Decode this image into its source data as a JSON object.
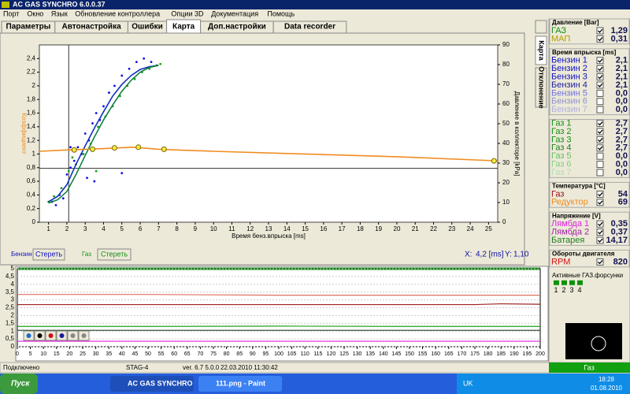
{
  "window": {
    "title": "AC GAS SYNCHRO  6.0.0.37"
  },
  "menu": [
    "Порт",
    "Окно",
    "Язык",
    "Обновление контроллера",
    "Опции 3D",
    "Документация",
    "Помощь"
  ],
  "tabs": [
    "Параметры",
    "Автонастройка",
    "Ошибки",
    "Карта",
    "Доп.настройки",
    "Data recorder"
  ],
  "side_tabs": [
    "Карта",
    "Отклонение"
  ],
  "chart_data": [
    {
      "type": "line",
      "xlabel": "Время бенз.впрыска [ms]",
      "ylabel": "Коэффициент",
      "y2label": "Давление в коллекторе [kPa]",
      "xlim": [
        0.5,
        25.5
      ],
      "xticks": [
        1,
        2,
        3,
        4,
        5,
        6,
        7,
        8,
        9,
        10,
        11,
        12,
        13,
        14,
        15,
        16,
        17,
        18,
        19,
        20,
        21,
        22,
        23,
        24,
        25
      ],
      "ylim": [
        0,
        2.6
      ],
      "yticks": [
        0,
        {
          "value": 0.2,
          "label": "0,2"
        },
        {
          "value": 0.4,
          "label": "0,4"
        },
        {
          "value": 0.6,
          "label": "0,6"
        },
        {
          "value": 0.8,
          "label": "0,8"
        },
        1,
        {
          "value": 1.2,
          "label": "1,2"
        },
        {
          "value": 1.4,
          "label": "1,4"
        },
        {
          "value": 1.6,
          "label": "1,6"
        },
        {
          "value": 1.8,
          "label": "1,8"
        },
        2,
        {
          "value": 2.2,
          "label": "2,2"
        },
        {
          "value": 2.4,
          "label": "2,4"
        }
      ],
      "y2lim": [
        0,
        90
      ],
      "y2ticks": [
        0,
        10,
        20,
        30,
        40,
        50,
        60,
        70,
        80,
        90
      ],
      "cursor": {
        "x": 2.1,
        "y": 0.79
      },
      "series": [
        {
          "kind": "points",
          "color": "#1010e0",
          "x": [
            1.2,
            1.4,
            1.6,
            1.8,
            2.0,
            2.2,
            2.4,
            2.6,
            2.8,
            3.0,
            3.2,
            3.4,
            3.6,
            3.8,
            4.0,
            4.3,
            4.6,
            5.0,
            5.4,
            5.8,
            6.2,
            6.6,
            3.5,
            3.1,
            2.2,
            5.0
          ],
          "values": [
            0.3,
            0.25,
            0.4,
            0.35,
            0.7,
            0.8,
            0.9,
            1.1,
            1.0,
            1.3,
            1.2,
            1.45,
            1.6,
            1.5,
            1.7,
            1.9,
            2.0,
            2.15,
            2.25,
            2.35,
            2.4,
            2.35,
            0.6,
            0.65,
            1.1,
            0.72
          ]
        },
        {
          "kind": "points",
          "color": "#10a010",
          "x": [
            1.0,
            1.3,
            1.7,
            2.1,
            2.5,
            2.9,
            3.3,
            3.7,
            4.1,
            4.5,
            4.9,
            5.3,
            5.7,
            6.1,
            6.5,
            6.9,
            7.1,
            2.3,
            3.6
          ],
          "values": [
            0.3,
            0.38,
            0.5,
            0.75,
            0.85,
            1.0,
            1.15,
            1.4,
            1.55,
            1.7,
            1.85,
            2.0,
            2.1,
            2.2,
            2.25,
            2.3,
            2.32,
            0.95,
            0.75
          ]
        },
        {
          "kind": "line",
          "color": "#1030c0",
          "x": [
            1,
            1.5,
            2,
            2.5,
            3,
            3.5,
            4,
            4.5,
            5,
            5.5,
            6,
            6.5,
            7
          ],
          "values": [
            0.3,
            0.38,
            0.55,
            0.85,
            1.12,
            1.38,
            1.62,
            1.85,
            2.02,
            2.15,
            2.24,
            2.28,
            2.3
          ]
        },
        {
          "kind": "line",
          "color": "#108040",
          "x": [
            1,
            1.5,
            2,
            2.5,
            3,
            3.5,
            4,
            4.5,
            5,
            5.5,
            6,
            6.5,
            7
          ],
          "values": [
            0.28,
            0.33,
            0.45,
            0.7,
            0.98,
            1.25,
            1.5,
            1.72,
            1.92,
            2.08,
            2.2,
            2.27,
            2.3
          ]
        },
        {
          "kind": "line",
          "color": "#f08c20",
          "x": [
            0.5,
            2,
            4,
            5.6,
            7,
            10,
            15,
            20,
            25.5
          ],
          "values": [
            1.04,
            1.06,
            1.08,
            1.1,
            1.07,
            1.04,
            1.0,
            0.96,
            0.9
          ]
        },
        {
          "kind": "markers",
          "color": "#f0f040",
          "x": [
            2.4,
            3.4,
            4.6,
            5.9,
            7.3,
            25.3
          ],
          "values": [
            1.06,
            1.07,
            1.09,
            1.1,
            1.07,
            0.9
          ]
        }
      ]
    },
    {
      "type": "line",
      "xlim": [
        0,
        200
      ],
      "xticks": [
        0,
        5,
        10,
        15,
        20,
        25,
        30,
        35,
        40,
        45,
        50,
        55,
        60,
        65,
        70,
        75,
        80,
        85,
        90,
        95,
        100,
        105,
        110,
        115,
        120,
        125,
        130,
        135,
        140,
        145,
        150,
        155,
        160,
        165,
        170,
        175,
        180,
        185,
        190,
        195,
        200
      ],
      "ylim": [
        0,
        5
      ],
      "yticks": [
        0,
        {
          "value": 0.5,
          "label": "0,5"
        },
        1,
        {
          "value": 1.5,
          "label": "1,5"
        },
        2,
        {
          "value": 2.5,
          "label": "2,5"
        },
        3,
        {
          "value": 3.5,
          "label": "3,5"
        },
        4,
        {
          "value": 4.5,
          "label": "4,5"
        },
        5
      ],
      "x": [
        0,
        50,
        100,
        150,
        175,
        185,
        200
      ],
      "series": [
        {
          "color": "#e07060",
          "values": [
            3.35,
            3.35,
            3.3,
            3.3,
            3.3,
            3.3,
            3.3
          ]
        },
        {
          "color": "#a02020",
          "values": [
            2.7,
            2.7,
            2.7,
            2.7,
            2.7,
            2.75,
            2.72
          ]
        },
        {
          "color": "#20a020",
          "values": [
            1.3,
            1.3,
            1.32,
            1.3,
            1.3,
            1.3,
            1.3
          ]
        },
        {
          "color": "#204020",
          "values": [
            1.05,
            1.05,
            1.05,
            1.05,
            1.05,
            1.05,
            1.05
          ]
        },
        {
          "color": "#e020e0",
          "values": [
            0.35,
            0.35,
            0.35,
            0.35,
            0.35,
            0.35,
            0.35
          ]
        }
      ]
    }
  ],
  "chart_controls": {
    "petrol": {
      "label": "Бензин",
      "button": "Стереть"
    },
    "gas": {
      "label": "Газ",
      "button": "Стереть"
    },
    "readout": {
      "x_label": "X:",
      "x": "4,2 [ms]",
      "y_label": "Y:",
      "y": "1,10"
    }
  },
  "panel": [
    {
      "title": "Давление [Bar]",
      "rows": [
        {
          "label": "ГАЗ",
          "value": "1,29",
          "color": "#109010",
          "checked": true
        },
        {
          "label": "МАП",
          "value": "0,31",
          "color": "#b0a000",
          "checked": true
        }
      ]
    },
    {
      "title": "Время впрыска [ms]",
      "rows": [
        {
          "label": "Бензин 1",
          "value": "2,1",
          "color": "#1010c0",
          "checked": true
        },
        {
          "label": "Бензин 2",
          "value": "2,1",
          "color": "#1010c0",
          "checked": true
        },
        {
          "label": "Бензин 3",
          "value": "2,1",
          "color": "#1010c0",
          "checked": true
        },
        {
          "label": "Бензин 4",
          "value": "2,1",
          "color": "#2020a0",
          "checked": true
        },
        {
          "label": "Бензин 5",
          "value": "0,0",
          "color": "#7070e0",
          "checked": false
        },
        {
          "label": "Бензин 6",
          "value": "0,0",
          "color": "#9090d0",
          "checked": false
        },
        {
          "label": "Бензин 7",
          "value": "0,0",
          "color": "#b0b0e0",
          "checked": false
        }
      ]
    },
    {
      "rows": [
        {
          "label": "Газ 1",
          "value": "2,7",
          "color": "#109010",
          "checked": true
        },
        {
          "label": "Газ 2",
          "value": "2,7",
          "color": "#109010",
          "checked": true
        },
        {
          "label": "Газ 3",
          "value": "2,7",
          "color": "#109010",
          "checked": true
        },
        {
          "label": "Газ 4",
          "value": "2,7",
          "color": "#208020",
          "checked": true
        },
        {
          "label": "Газ 5",
          "value": "0,0",
          "color": "#60c060",
          "checked": false
        },
        {
          "label": "Газ 6",
          "value": "0,0",
          "color": "#80d080",
          "checked": false
        },
        {
          "label": "Газ 7",
          "value": "0,0",
          "color": "#b0e0b0",
          "checked": false
        }
      ]
    },
    {
      "title": "Температура [°C]",
      "rows": [
        {
          "label": "Газ",
          "value": "54",
          "color": "#a01010",
          "checked": true
        },
        {
          "label": "Редуктор",
          "value": "69",
          "color": "#f08c20",
          "checked": true
        }
      ]
    },
    {
      "title": "Напряжение [V]",
      "rows": [
        {
          "label": "Лямбда 1",
          "value": "0,35",
          "color": "#e020e0",
          "checked": true
        },
        {
          "label": "Лямбда 2",
          "value": "0,37",
          "color": "#a020a0",
          "checked": true
        },
        {
          "label": "Батарея",
          "value": "14,17",
          "color": "#208020",
          "checked": true
        }
      ]
    },
    {
      "title": "Обороты двигателя",
      "rows": [
        {
          "label": "RPM",
          "value": "820",
          "color": "#d01010",
          "checked": true
        }
      ]
    }
  ],
  "injectors": {
    "title": "Активные ГАЗ.форсунки",
    "labels": [
      "1",
      "2",
      "3",
      "4"
    ]
  },
  "status": [
    "Подключено",
    "STAG-4",
    "ver. 6.7  5.0.0",
    "22.03.2010 11:30:42"
  ],
  "indicator": "Газ",
  "taskbar": {
    "start": "Пуск",
    "items": [
      "AC GAS SYNCHRO",
      "111.png - Paint"
    ],
    "lang": "UK",
    "time": "18:28",
    "date": "01.08.2010"
  }
}
